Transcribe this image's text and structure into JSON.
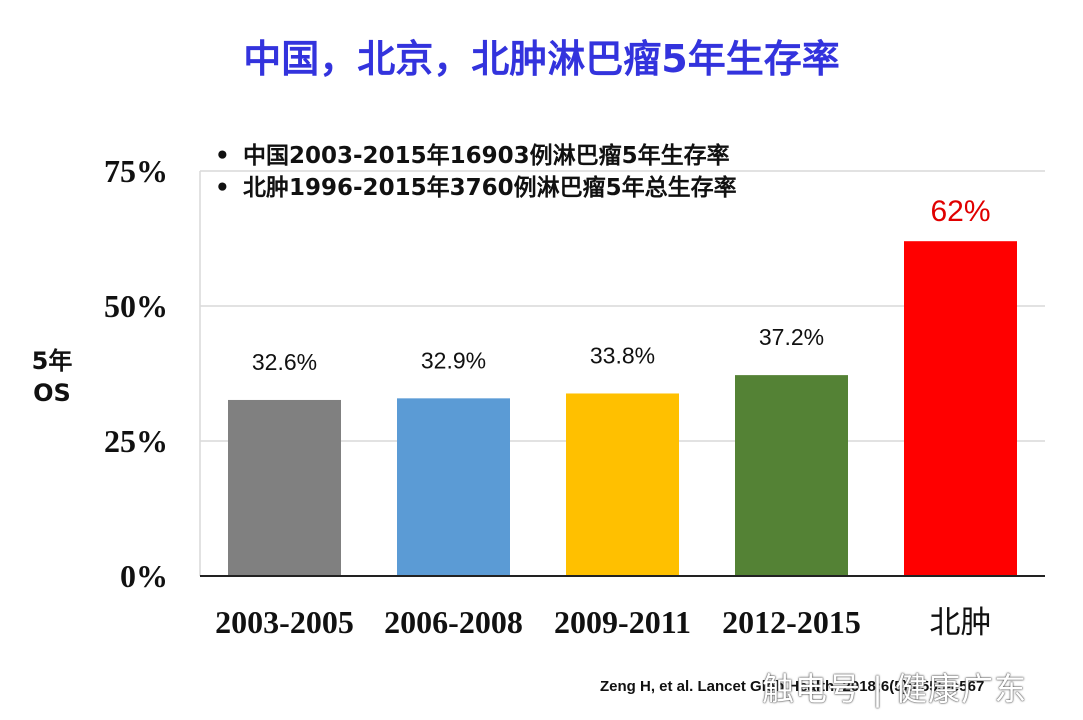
{
  "title": "中国，北京，北肿淋巴瘤5年生存率",
  "legend": [
    "中国2003-2015年16903例淋巴瘤5年生存率",
    "北肿1996-2015年3760例淋巴瘤5年总生存率"
  ],
  "ylabel_line1": "5年",
  "ylabel_line2": "OS",
  "footer": "Zeng H, et al. Lancet Glob Health. 2018;6(5):e555-e567",
  "watermark": "触电号 | 健康广东",
  "chart_data": {
    "type": "bar",
    "title": "中国，北京，北肿淋巴瘤5年生存率",
    "ylabel": "5年 OS",
    "xlabel": "",
    "ylim": [
      0,
      75
    ],
    "yticks": [
      0,
      25,
      50,
      75
    ],
    "ytick_labels": [
      "0%",
      "25%",
      "50%",
      "75%"
    ],
    "grid": true,
    "categories": [
      "2003-2005",
      "2006-2008",
      "2009-2011",
      "2012-2015",
      "北肿"
    ],
    "values": [
      32.6,
      32.9,
      33.8,
      37.2,
      62
    ],
    "data_labels": [
      "32.6%",
      "32.9%",
      "33.8%",
      "37.2%",
      "62%"
    ],
    "colors": [
      "#808080",
      "#5b9bd5",
      "#ffc000",
      "#548235",
      "#ff0000"
    ],
    "label_colors": [
      "#111111",
      "#111111",
      "#111111",
      "#111111",
      "#e00000"
    ]
  }
}
